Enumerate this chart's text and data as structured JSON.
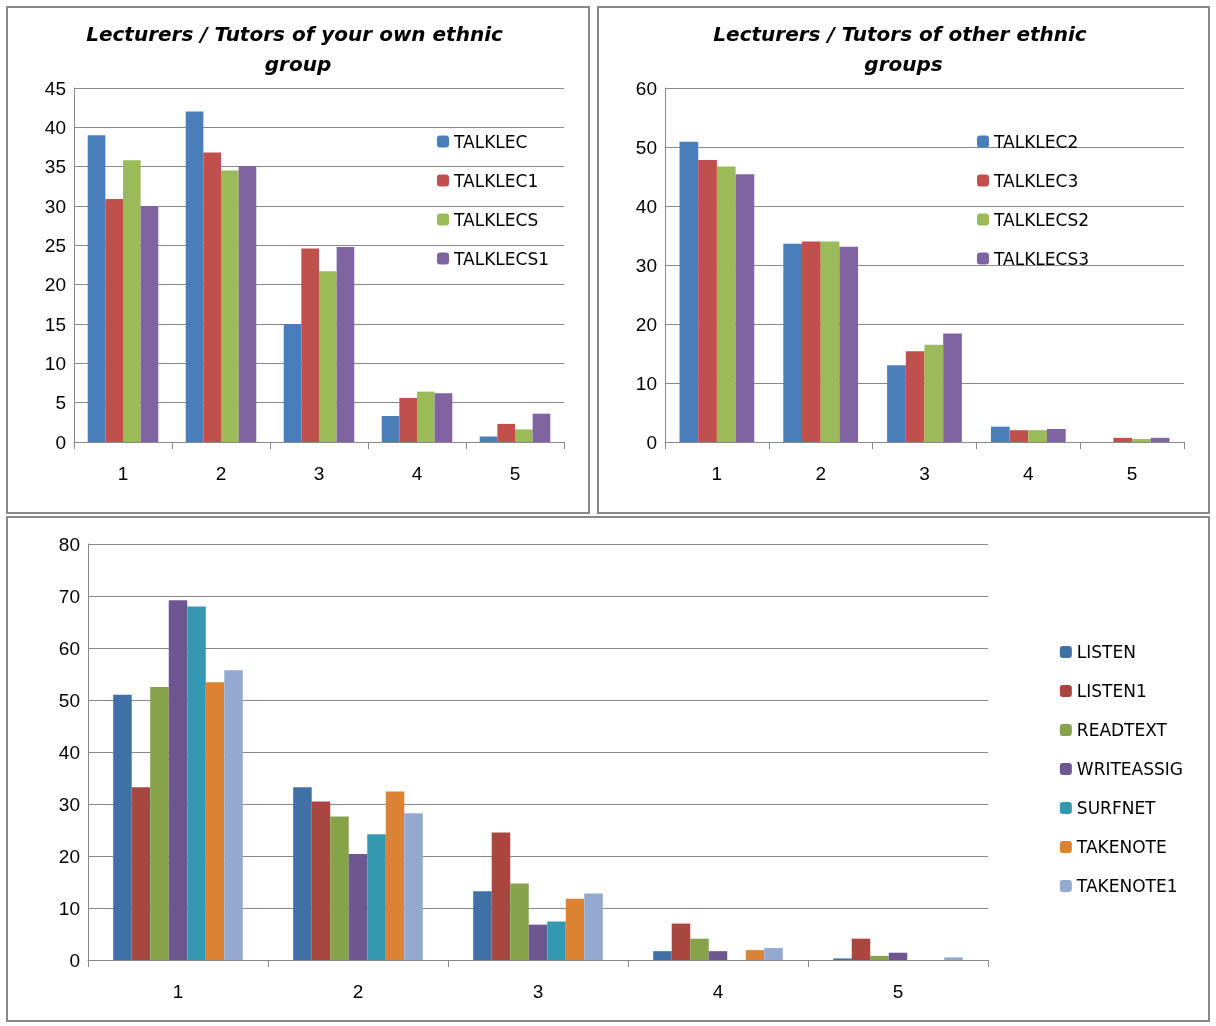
{
  "chart_data": [
    {
      "type": "bar",
      "title": "Lecturers / Tutors of your own ethnic group",
      "categories": [
        "1",
        "2",
        "3",
        "4",
        "5"
      ],
      "ylim": [
        0,
        45
      ],
      "yticks": [
        0,
        5,
        10,
        15,
        20,
        25,
        30,
        35,
        40,
        45
      ],
      "grid": "y",
      "legend": "top right",
      "series": [
        {
          "name": "TALKLEC",
          "color": "#4a7ebb",
          "values": [
            39,
            42,
            15,
            3.3,
            0.7
          ]
        },
        {
          "name": "TALKLEC1",
          "color": "#c0504d",
          "values": [
            30.9,
            36.8,
            24.6,
            5.6,
            2.3
          ]
        },
        {
          "name": "TALKLECS",
          "color": "#9bbb59",
          "values": [
            35.8,
            34.5,
            21.7,
            6.4,
            1.6
          ]
        },
        {
          "name": "TALKLECS1",
          "color": "#8064a2",
          "values": [
            30,
            35.1,
            24.8,
            6.2,
            3.6
          ]
        }
      ]
    },
    {
      "type": "bar",
      "title": "Lecturers / Tutors of other ethnic groups",
      "categories": [
        "1",
        "2",
        "3",
        "4",
        "5"
      ],
      "ylim": [
        0,
        60
      ],
      "yticks": [
        0,
        10,
        20,
        30,
        40,
        50,
        60
      ],
      "grid": "y",
      "legend": "top right",
      "series": [
        {
          "name": "TALKLEC2",
          "color": "#4a7ebb",
          "values": [
            50.9,
            33.6,
            13,
            2.6,
            0
          ]
        },
        {
          "name": "TALKLEC3",
          "color": "#c0504d",
          "values": [
            47.8,
            34,
            15.4,
            2,
            0.7
          ]
        },
        {
          "name": "TALKLECS2",
          "color": "#9bbb59",
          "values": [
            46.7,
            34,
            16.5,
            2,
            0.5
          ]
        },
        {
          "name": "TALKLECS3",
          "color": "#8064a2",
          "values": [
            45.4,
            33.1,
            18.4,
            2.2,
            0.7
          ]
        }
      ]
    },
    {
      "type": "bar",
      "categories": [
        "1",
        "2",
        "3",
        "4",
        "5"
      ],
      "ylim": [
        0,
        80
      ],
      "yticks": [
        0,
        10,
        20,
        30,
        40,
        50,
        60,
        70,
        80
      ],
      "grid": "y",
      "legend": "right",
      "series": [
        {
          "name": "LISTEN",
          "color": "#4071a5",
          "values": [
            51,
            33.2,
            13.2,
            1.7,
            0.3
          ]
        },
        {
          "name": "LISTEN1",
          "color": "#aa4640",
          "values": [
            33.2,
            30.5,
            24.5,
            7,
            4.1
          ]
        },
        {
          "name": "READTEXT",
          "color": "#86a34a",
          "values": [
            52.5,
            27.6,
            14.7,
            4.1,
            0.8
          ]
        },
        {
          "name": "WRITEASSIG",
          "color": "#6e5791",
          "values": [
            69.2,
            20.4,
            6.8,
            1.7,
            1.4
          ]
        },
        {
          "name": "SURFNET",
          "color": "#3598b1",
          "values": [
            68,
            24.2,
            7.4,
            0,
            0
          ]
        },
        {
          "name": "TAKENOTE",
          "color": "#db8233",
          "values": [
            53.4,
            32.4,
            11.8,
            1.9,
            0
          ]
        },
        {
          "name": "TAKENOTE1",
          "color": "#94a9d0",
          "values": [
            55.7,
            28.2,
            12.8,
            2.3,
            0.5
          ]
        }
      ]
    }
  ]
}
